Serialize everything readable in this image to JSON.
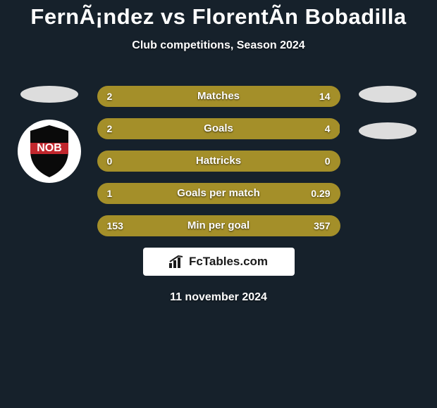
{
  "background_color": "#16212b",
  "title": "FernÃ¡ndez vs FlorentÃ­n Bobadilla",
  "title_fontsize": 31,
  "title_color": "#ffffff",
  "subtitle": "Club competitions, Season 2024",
  "subtitle_fontsize": 16,
  "date": "11 november 2024",
  "colors": {
    "bar_left": "#a48f29",
    "bar_right": "#a48f29",
    "bar_track": "#a48f29",
    "bar_radius": 15,
    "value_text": "#ffffff",
    "label_text": "#ffffff"
  },
  "left_club": {
    "has_badge": true,
    "badge_text": "NOB",
    "badge_bg": "#ffffff",
    "badge_shield_fill": "#0a0a0a",
    "badge_shield_bar": "#c1272d"
  },
  "right_club": {
    "has_badge": false
  },
  "bars": [
    {
      "label": "Matches",
      "left_value": "2",
      "right_value": "14",
      "left_pct": 12.5,
      "right_pct": 87.5
    },
    {
      "label": "Goals",
      "left_value": "2",
      "right_value": "4",
      "left_pct": 33.3,
      "right_pct": 66.7
    },
    {
      "label": "Hattricks",
      "left_value": "0",
      "right_value": "0",
      "left_pct": 50.0,
      "right_pct": 50.0
    },
    {
      "label": "Goals per match",
      "left_value": "1",
      "right_value": "0.29",
      "left_pct": 77.5,
      "right_pct": 22.5
    },
    {
      "label": "Min per goal",
      "left_value": "153",
      "right_value": "357",
      "left_pct": 30.0,
      "right_pct": 70.0
    }
  ],
  "footer_brand": "FcTables.com"
}
